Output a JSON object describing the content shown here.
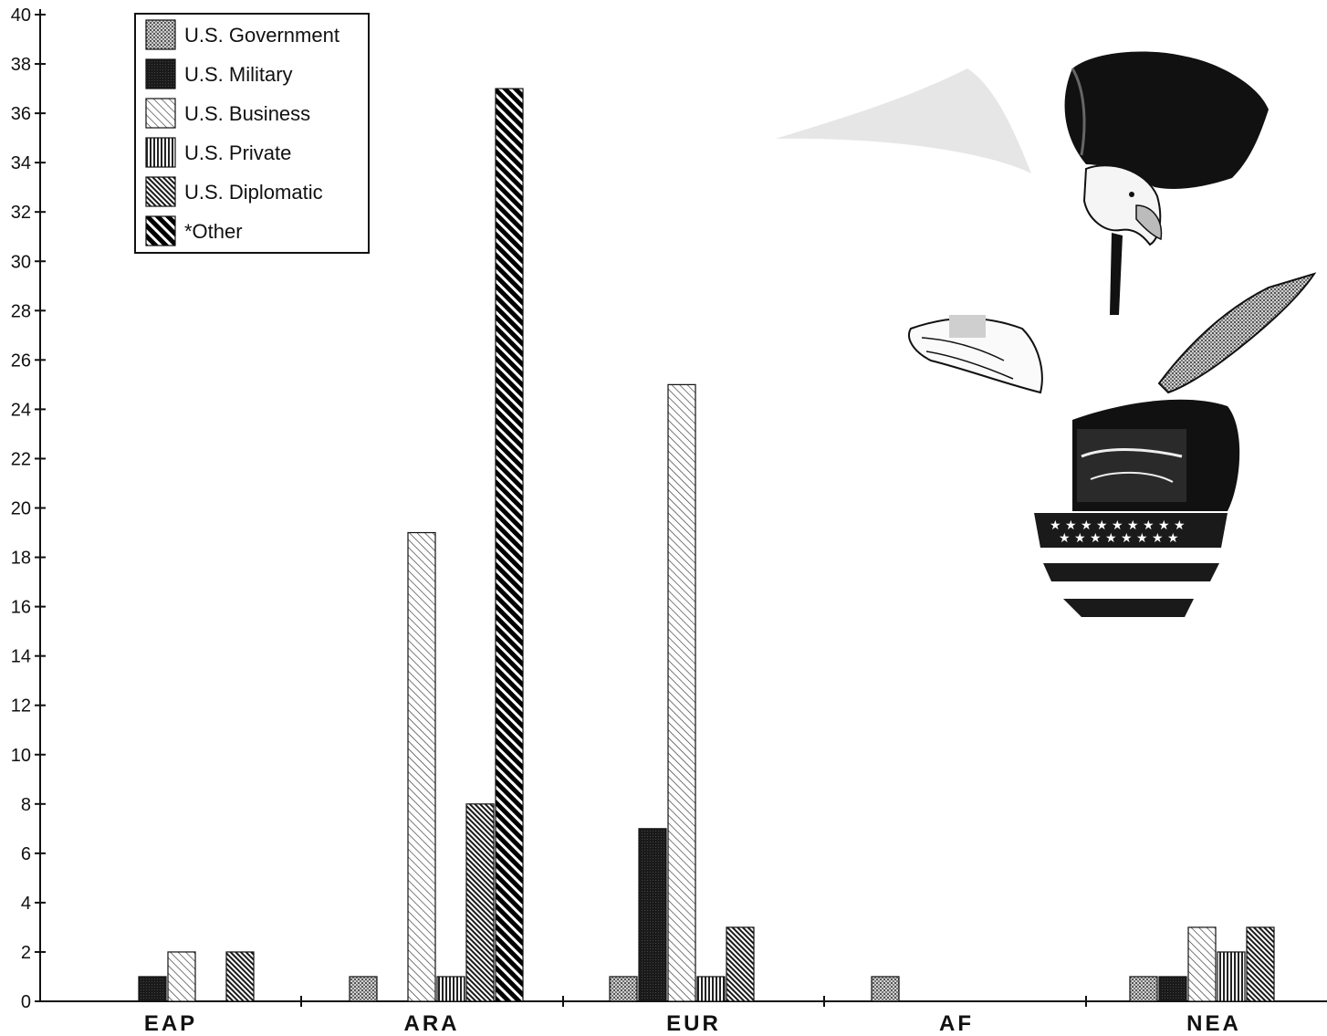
{
  "chart_data": {
    "type": "bar",
    "categories": [
      "EAP",
      "ARA",
      "EUR",
      "AF",
      "NEA"
    ],
    "ylim": [
      0,
      40
    ],
    "yticks": [
      0,
      2,
      4,
      6,
      8,
      10,
      12,
      14,
      16,
      18,
      20,
      22,
      24,
      26,
      28,
      30,
      32,
      34,
      36,
      38,
      40
    ],
    "legend_position": "top-left",
    "grid": false,
    "series": [
      {
        "name": "U.S. Government",
        "pattern": "dots",
        "color": "#888888",
        "values": [
          0,
          1,
          1,
          1,
          1
        ]
      },
      {
        "name": "U.S. Military",
        "pattern": "solid-dark",
        "color": "#1a1a1a",
        "values": [
          1,
          0,
          7,
          0,
          1
        ]
      },
      {
        "name": "U.S. Business",
        "pattern": "light-diagonal",
        "color": "#555555",
        "values": [
          2,
          19,
          25,
          0,
          3
        ]
      },
      {
        "name": "U.S. Private",
        "pattern": "vertical",
        "color": "#333333",
        "values": [
          0,
          1,
          1,
          0,
          2
        ]
      },
      {
        "name": "U.S. Diplomatic",
        "pattern": "dense-diagonal",
        "color": "#222222",
        "values": [
          2,
          8,
          3,
          0,
          3
        ]
      },
      {
        "name": "*Other",
        "pattern": "heavy-diagonal",
        "color": "#000000",
        "values": [
          0,
          37,
          0,
          0,
          0
        ]
      }
    ]
  },
  "illustration": {
    "description_icon": "eagle-with-sword-and-flag-shield-icon"
  }
}
